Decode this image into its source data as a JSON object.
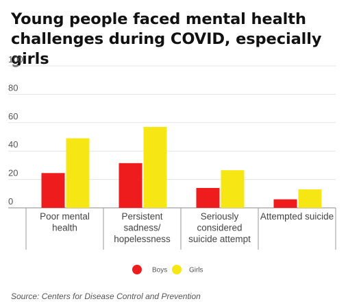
{
  "chart_data": {
    "type": "bar",
    "title": "Young people faced mental health challenges during COVID, especially girls",
    "categories": [
      [
        "Poor mental",
        "health"
      ],
      [
        "Persistent",
        "sadness/",
        "hopelessness"
      ],
      [
        "Seriously",
        "considered",
        "suicide attempt"
      ],
      [
        "Attempted suicide"
      ]
    ],
    "series": [
      {
        "name": "Boys",
        "color": "#ee1c1c",
        "values": [
          24.5,
          31.5,
          14,
          6
        ]
      },
      {
        "name": "Girls",
        "color": "#f5e614",
        "values": [
          49,
          57,
          26.5,
          13
        ]
      }
    ],
    "yticks": [
      0,
      20,
      40,
      60,
      80,
      100
    ],
    "ylim": [
      0,
      100
    ],
    "grid": true,
    "legend": "bottom-center",
    "source": "Source: Centers for Disease Control and Prevention"
  }
}
